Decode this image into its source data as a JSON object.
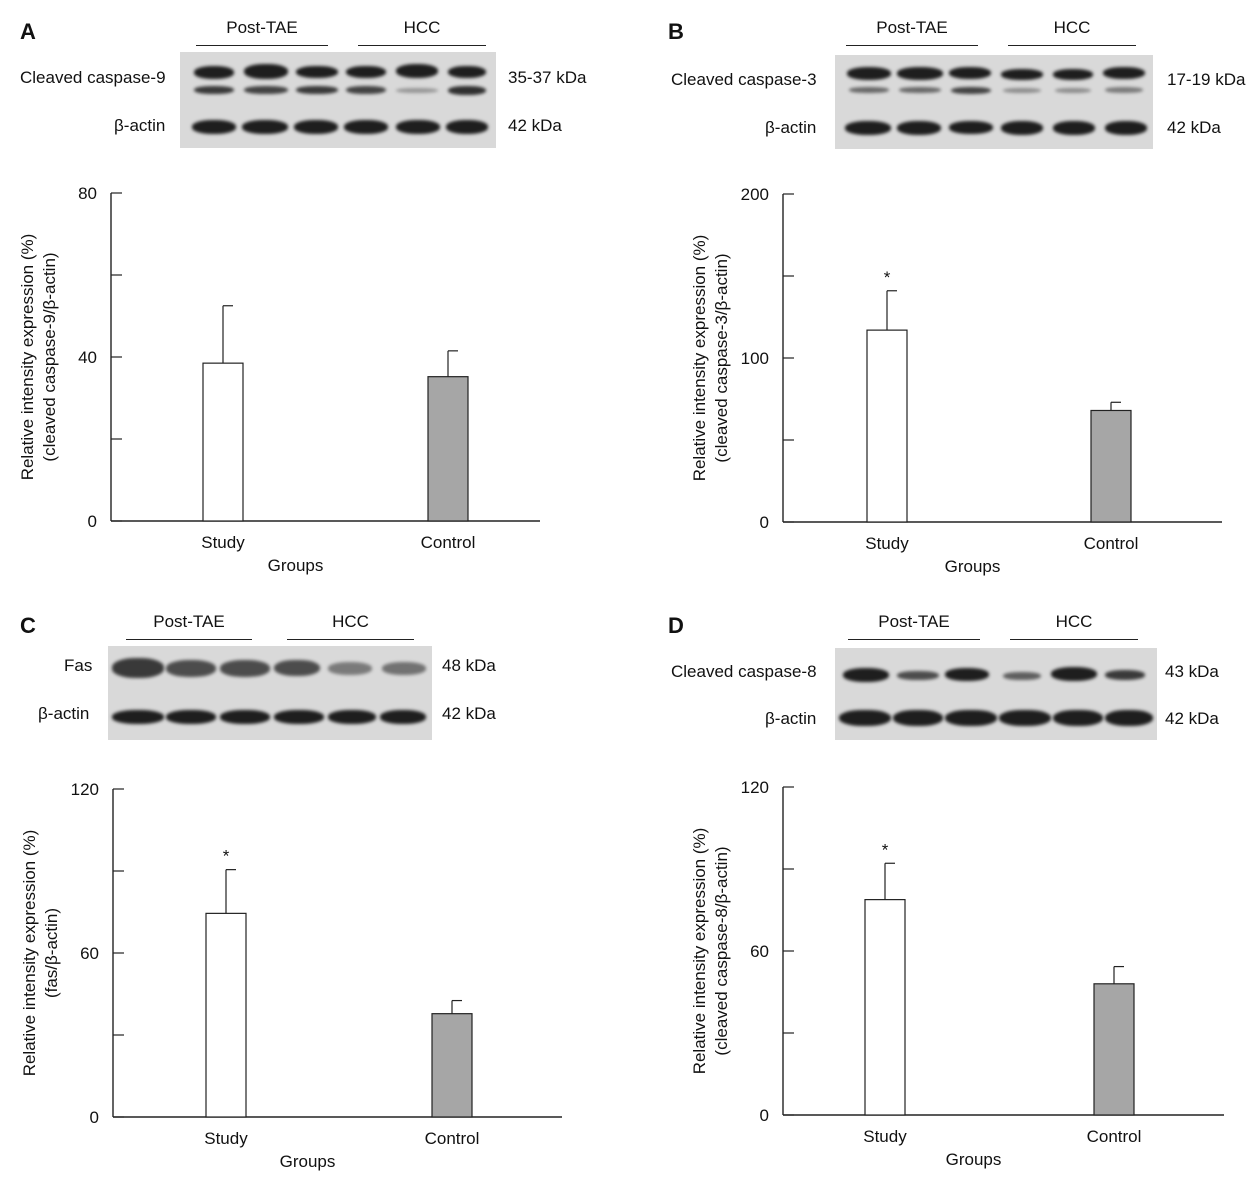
{
  "panels": [
    {
      "letter": "A",
      "groups": [
        "Post-TAE",
        "HCC"
      ],
      "blot_rows": [
        {
          "protein": "Cleaved caspase-9",
          "size": "35-37 kDa"
        },
        {
          "protein": "β-actin",
          "size": "42 kDa"
        }
      ],
      "marker": ""
    },
    {
      "letter": "B",
      "groups": [
        "Post-TAE",
        "HCC"
      ],
      "blot_rows": [
        {
          "protein": "Cleaved caspase-3",
          "size": "17-19 kDa"
        },
        {
          "protein": "β-actin",
          "size": "42 kDa"
        }
      ],
      "marker": "*"
    },
    {
      "letter": "C",
      "groups": [
        "Post-TAE",
        "HCC"
      ],
      "blot_rows": [
        {
          "protein": "Fas",
          "size": "48 kDa"
        },
        {
          "protein": "β-actin",
          "size": "42 kDa"
        }
      ],
      "marker": "*"
    },
    {
      "letter": "D",
      "groups": [
        "Post-TAE",
        "HCC"
      ],
      "blot_rows": [
        {
          "protein": "Cleaved caspase-8",
          "size": "43 kDa"
        },
        {
          "protein": "β-actin",
          "size": "42 kDa"
        }
      ],
      "marker": "*"
    }
  ],
  "chart_data": [
    {
      "type": "bar",
      "categories": [
        "Study",
        "Control"
      ],
      "values": [
        38.5,
        35.2
      ],
      "errors": [
        14,
        6.3
      ],
      "xlabel": "Groups",
      "ylabel_line1": "Relative intensity expression (%)",
      "ylabel_line2": "(cleaved caspase-9/β-actin)",
      "ylim": [
        0,
        80
      ],
      "major_ticks": [
        0,
        40,
        80
      ],
      "minor_ticks": [
        20,
        60
      ],
      "bar_colors": [
        "#ffffff",
        "#a6a6a6"
      ]
    },
    {
      "type": "bar",
      "categories": [
        "Study",
        "Control"
      ],
      "values": [
        117,
        68
      ],
      "errors": [
        24,
        5
      ],
      "xlabel": "Groups",
      "ylabel_line1": "Relative intensity expression (%)",
      "ylabel_line2": "(cleaved caspase-3/β-actin)",
      "ylim": [
        0,
        200
      ],
      "major_ticks": [
        0,
        100,
        200
      ],
      "minor_ticks": [
        50,
        150
      ],
      "bar_colors": [
        "#ffffff",
        "#a6a6a6"
      ]
    },
    {
      "type": "bar",
      "categories": [
        "Study",
        "Control"
      ],
      "values": [
        74.5,
        37.8
      ],
      "errors": [
        16,
        4.8
      ],
      "xlabel": "Groups",
      "ylabel_line1": "Relative intensity expression (%)",
      "ylabel_line2": "(fas/β-actin)",
      "ylim": [
        0,
        120
      ],
      "major_ticks": [
        0,
        60,
        120
      ],
      "minor_ticks": [
        30,
        90
      ],
      "bar_colors": [
        "#ffffff",
        "#a6a6a6"
      ]
    },
    {
      "type": "bar",
      "categories": [
        "Study",
        "Control"
      ],
      "values": [
        78.8,
        48
      ],
      "errors": [
        13.3,
        6.3
      ],
      "xlabel": "Groups",
      "ylabel_line1": "Relative intensity expression (%)",
      "ylabel_line2": "(cleaved caspase-8/β-actin)",
      "ylim": [
        0,
        120
      ],
      "major_ticks": [
        0,
        60,
        120
      ],
      "minor_ticks": [
        30,
        90
      ],
      "bar_colors": [
        "#ffffff",
        "#a6a6a6"
      ]
    }
  ]
}
